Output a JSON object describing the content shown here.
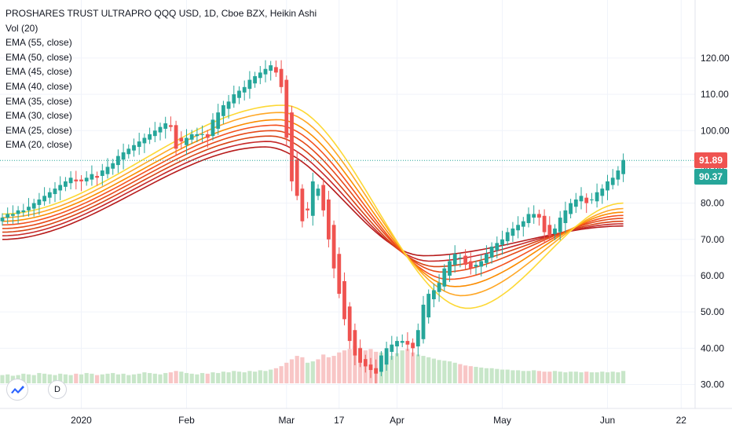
{
  "legend": {
    "title": "PROSHARES TRUST ULTRAPRO QQQ USD, 1D, Cboe BZX, Heikin Ashi",
    "lines": [
      "Vol (20)",
      "EMA (55, close)",
      "EMA (50, close)",
      "EMA (45, close)",
      "EMA (40, close)",
      "EMA (35, close)",
      "EMA (30, close)",
      "EMA (25, close)",
      "EMA (20, close)"
    ]
  },
  "price_tags": {
    "last": "91.89",
    "prev": "90.37",
    "last_color": "#ef5350",
    "prev_color": "#26a69a"
  },
  "badge": "D",
  "colors": {
    "up": "#26a69a",
    "down": "#ef5350",
    "vol_up": "#c8e6c9",
    "vol_down": "#f8c6c6",
    "ema": [
      "#b71c1c",
      "#c62828",
      "#d84315",
      "#e64a19",
      "#f4511e",
      "#fb8c00",
      "#ffa726",
      "#fdd835"
    ]
  },
  "chart_data": {
    "type": "candlestick",
    "title": "PROSHARES TRUST ULTRAPRO QQQ USD, 1D, Cboe BZX, Heikin Ashi",
    "y_ticks": [
      30,
      40,
      50,
      60,
      70,
      80,
      90,
      100,
      110,
      120
    ],
    "y_tick_labels": [
      "30.00",
      "40.00",
      "50.00",
      "60.00",
      "70.00",
      "80.00",
      "90.00",
      "100.00",
      "110.00",
      "120.00"
    ],
    "ylim": [
      23.4,
      136
    ],
    "x_ticks": [
      {
        "label": "2020",
        "day": 15
      },
      {
        "label": "Feb",
        "day": 35
      },
      {
        "label": "Mar",
        "day": 54
      },
      {
        "label": "17",
        "day": 64
      },
      {
        "label": "Apr",
        "day": 75
      },
      {
        "label": "May",
        "day": 95
      },
      {
        "label": "Jun",
        "day": 115
      },
      {
        "label": "22",
        "day": 129
      }
    ],
    "last_price": 91.89,
    "prev_close": 90.37,
    "candles_close": [
      76,
      77,
      77,
      78,
      78,
      79,
      80,
      81,
      82,
      83,
      84,
      85,
      86,
      87,
      86,
      86,
      87,
      88,
      87,
      89,
      90,
      91,
      93,
      94,
      95,
      96,
      97,
      98,
      99,
      100,
      101,
      102,
      101,
      95,
      97,
      98,
      99,
      99,
      99,
      98,
      103,
      105,
      107,
      108,
      110,
      111,
      112,
      114,
      115,
      116,
      117,
      118,
      116,
      112,
      98,
      86,
      82,
      75,
      78,
      86,
      84,
      78,
      70,
      62,
      55,
      48,
      42,
      38,
      36,
      35,
      34,
      33,
      38,
      40,
      41,
      42,
      42,
      41,
      40,
      45,
      52,
      55,
      56,
      58,
      62,
      64,
      66,
      65,
      63,
      62,
      63,
      64,
      66,
      68,
      69,
      70,
      72,
      73,
      74,
      75,
      77,
      77,
      76,
      72,
      71,
      73,
      76,
      78,
      80,
      81,
      82,
      80,
      81,
      83,
      84,
      86,
      87,
      89,
      91.89
    ],
    "volume": [
      12,
      13,
      11,
      12,
      14,
      13,
      12,
      15,
      14,
      13,
      12,
      14,
      13,
      12,
      14,
      13,
      15,
      14,
      12,
      13,
      14,
      15,
      13,
      14,
      12,
      13,
      14,
      16,
      15,
      14,
      13,
      15,
      16,
      18,
      17,
      15,
      14,
      13,
      15,
      14,
      16,
      15,
      17,
      16,
      18,
      17,
      16,
      18,
      17,
      19,
      18,
      20,
      22,
      25,
      30,
      35,
      40,
      38,
      30,
      32,
      35,
      42,
      38,
      40,
      45,
      48,
      50,
      55,
      52,
      48,
      50,
      46,
      45,
      42,
      40,
      44,
      48,
      50,
      45,
      42,
      40,
      38,
      36,
      34,
      33,
      32,
      30,
      28,
      26,
      25,
      24,
      23,
      22,
      22,
      21,
      20,
      20,
      19,
      19,
      18,
      18,
      19,
      18,
      17,
      17,
      18,
      17,
      16,
      17,
      17,
      16,
      17,
      16,
      16,
      17,
      16,
      17,
      16,
      18
    ],
    "ema_series": [
      {
        "name": "EMA (55, close)",
        "start": 70,
        "peak": 95.5,
        "trough": 65.5,
        "end": 73.7
      },
      {
        "name": "EMA (50, close)",
        "start": 71,
        "peak": 97,
        "trough": 64,
        "end": 74.3
      },
      {
        "name": "EMA (45, close)",
        "start": 72,
        "peak": 98.5,
        "trough": 62.5,
        "end": 75
      },
      {
        "name": "EMA (40, close)",
        "start": 73,
        "peak": 100,
        "trough": 61,
        "end": 75.8
      },
      {
        "name": "EMA (35, close)",
        "start": 74,
        "peak": 101.5,
        "trough": 59,
        "end": 76.6
      },
      {
        "name": "EMA (30, close)",
        "start": 75,
        "peak": 103,
        "trough": 57,
        "end": 77.5
      },
      {
        "name": "EMA (25, close)",
        "start": 76,
        "peak": 105,
        "trough": 54.5,
        "end": 78.5
      },
      {
        "name": "EMA (20, close)",
        "start": 77,
        "peak": 107,
        "trough": 51,
        "end": 80
      }
    ]
  }
}
